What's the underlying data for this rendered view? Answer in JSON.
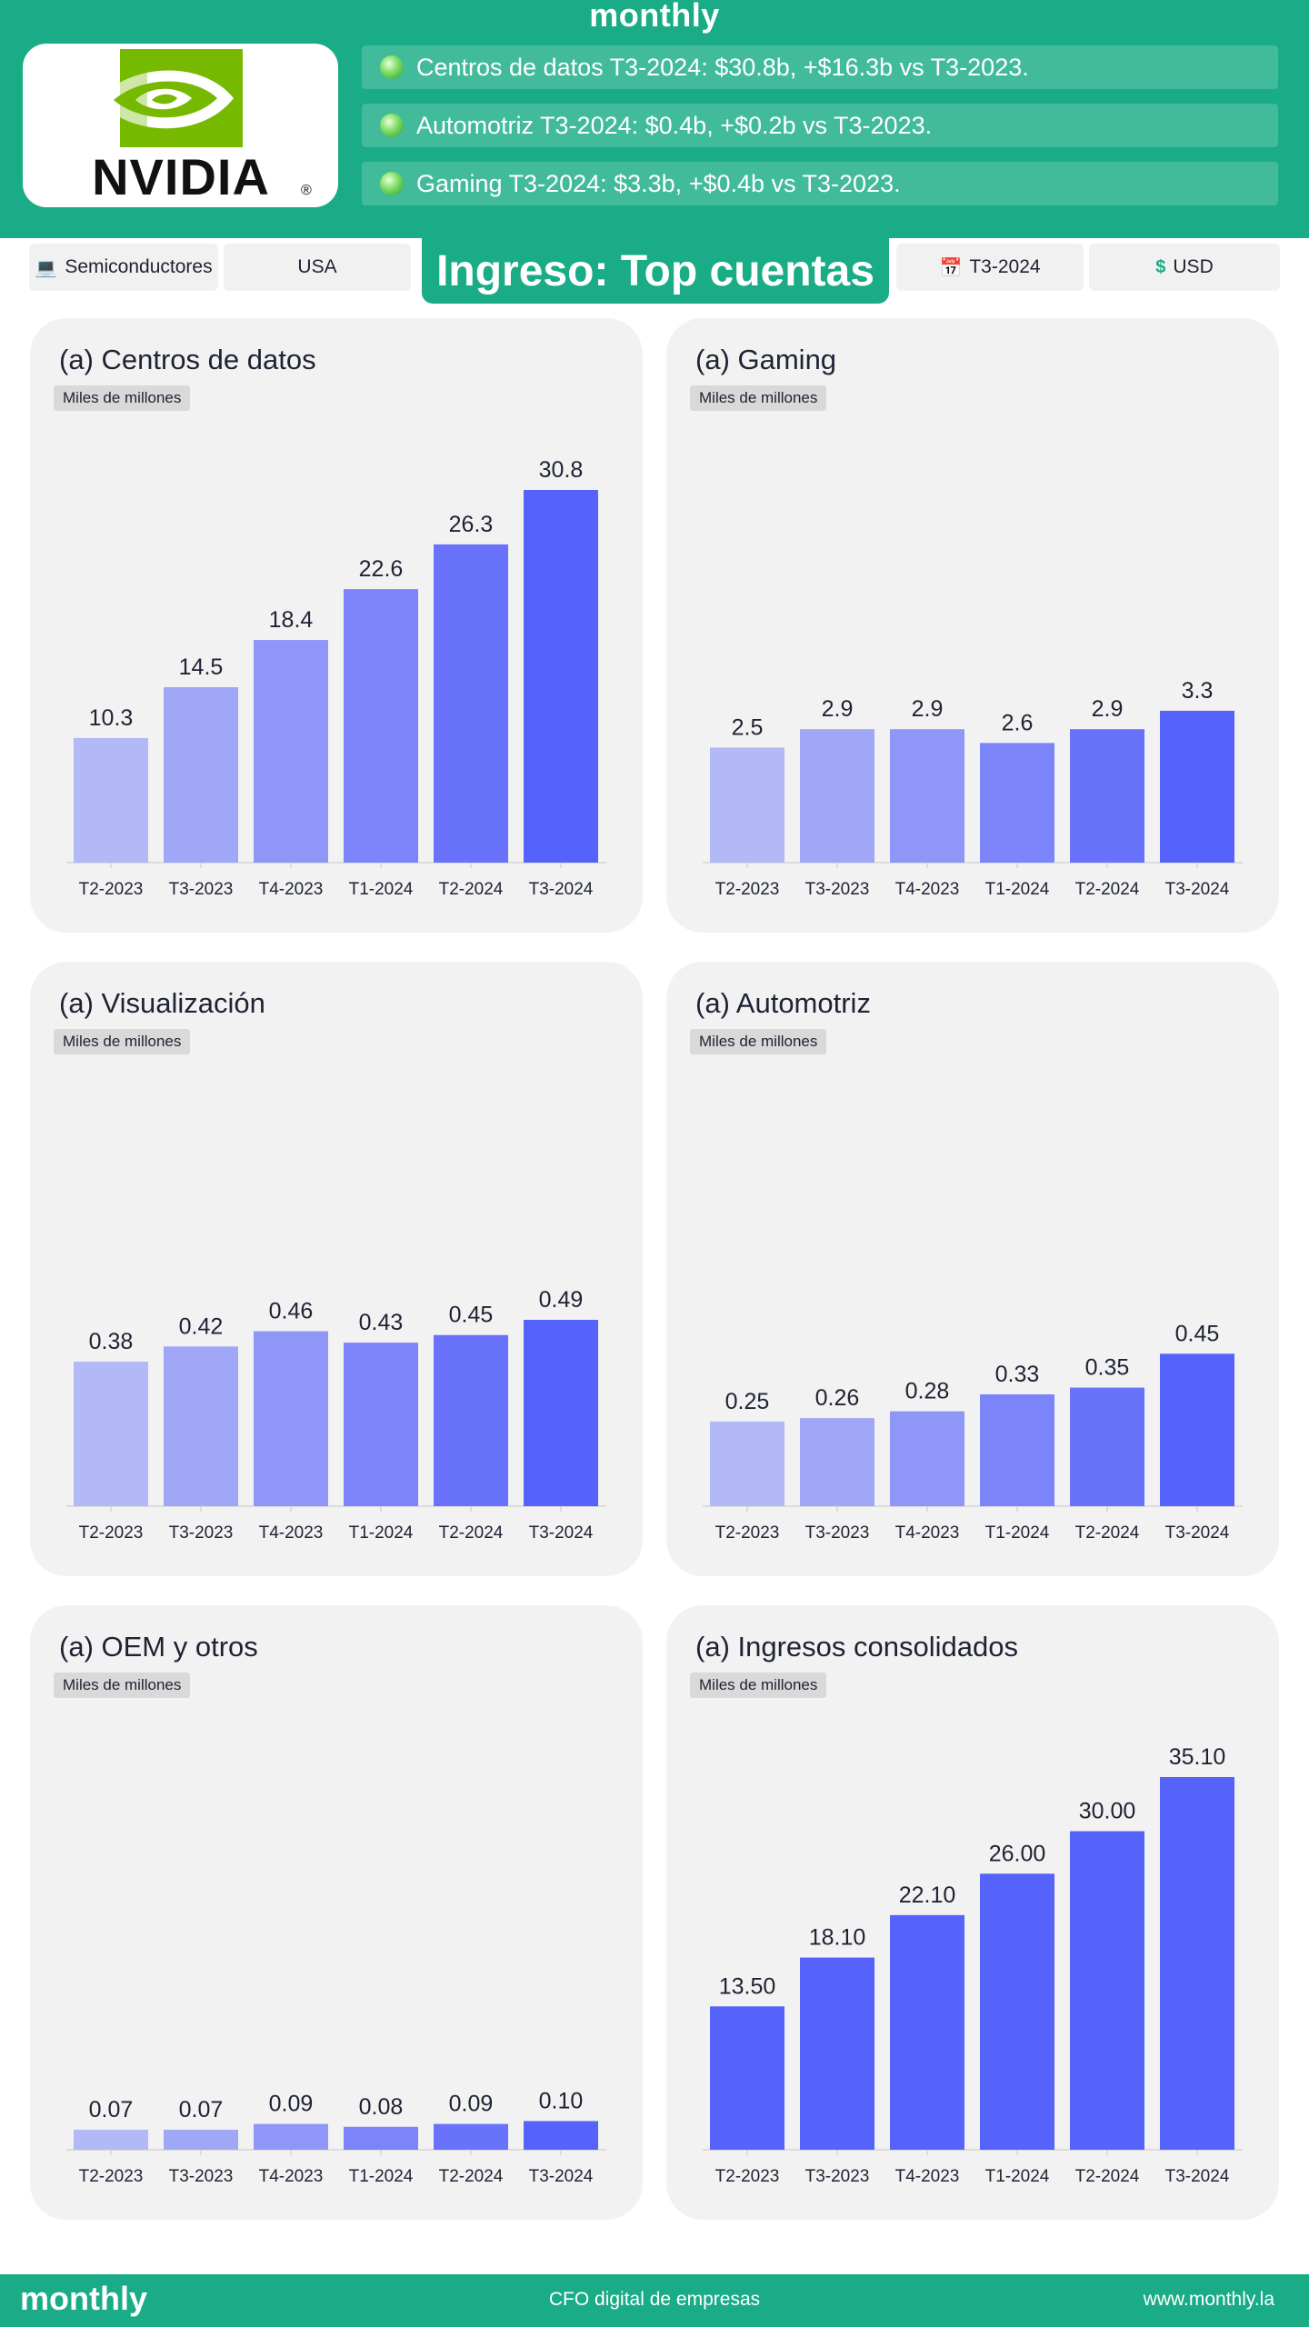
{
  "brand": "monthly",
  "company_logo": "NVIDIA",
  "highlights": [
    "Centros de datos T3-2024: $30.8b, +$16.3b vs T3-2023.",
    "Automotriz T3-2024: $0.4b, +$0.2b vs T3-2023.",
    "Gaming T3-2024: $3.3b, +$0.4b vs T3-2023."
  ],
  "filters": {
    "sector": "Semiconductores",
    "country": "USA",
    "period": "T3-2024",
    "currency": "USD"
  },
  "page_title": "Ingreso: Top cuentas",
  "icons": {
    "sector": "computer-icon",
    "period": "calendar-icon",
    "currency": "dollar-icon",
    "bullet": "green-orb-icon"
  },
  "colors": {
    "brand_green": "#19ac86",
    "bar_gradient": [
      "#b3b8f7",
      "#a0a7f7",
      "#8e96f8",
      "#7b84f9",
      "#6872fa",
      "#5563fb"
    ],
    "bar_solid": "#5563fb"
  },
  "chart_data": [
    {
      "type": "bar",
      "title": "(a) Centros de datos",
      "unit": "Miles de millones",
      "categories": [
        "T2-2023",
        "T3-2023",
        "T4-2023",
        "T1-2024",
        "T2-2024",
        "T3-2024"
      ],
      "values": [
        10.3,
        14.5,
        18.4,
        22.6,
        26.3,
        30.8
      ],
      "labels": [
        "10.3",
        "14.5",
        "18.4",
        "22.6",
        "26.3",
        "30.8"
      ],
      "ylim": [
        0,
        30.8
      ],
      "color_mode": "gradient"
    },
    {
      "type": "bar",
      "title": "(a) Gaming",
      "unit": "Miles de millones",
      "categories": [
        "T2-2023",
        "T3-2023",
        "T4-2023",
        "T1-2024",
        "T2-2024",
        "T3-2024"
      ],
      "values": [
        2.5,
        2.9,
        2.9,
        2.6,
        2.9,
        3.3
      ],
      "labels": [
        "2.5",
        "2.9",
        "2.9",
        "2.6",
        "2.9",
        "3.3"
      ],
      "ylim": [
        0,
        8.1
      ],
      "color_mode": "gradient"
    },
    {
      "type": "bar",
      "title": "(a) Visualización",
      "unit": "Miles de millones",
      "categories": [
        "T2-2023",
        "T3-2023",
        "T4-2023",
        "T1-2024",
        "T2-2024",
        "T3-2024"
      ],
      "values": [
        0.38,
        0.42,
        0.46,
        0.43,
        0.45,
        0.49
      ],
      "labels": [
        "0.38",
        "0.42",
        "0.46",
        "0.43",
        "0.45",
        "0.49"
      ],
      "ylim": [
        0,
        0.98
      ],
      "color_mode": "gradient"
    },
    {
      "type": "bar",
      "title": "(a) Automotriz",
      "unit": "Miles de millones",
      "categories": [
        "T2-2023",
        "T3-2023",
        "T4-2023",
        "T1-2024",
        "T2-2024",
        "T3-2024"
      ],
      "values": [
        0.25,
        0.26,
        0.28,
        0.33,
        0.35,
        0.45
      ],
      "labels": [
        "0.25",
        "0.26",
        "0.28",
        "0.33",
        "0.35",
        "0.45"
      ],
      "ylim": [
        0,
        1.1
      ],
      "color_mode": "gradient"
    },
    {
      "type": "bar",
      "title": "(a) OEM y otros",
      "unit": "Miles de millones",
      "categories": [
        "T2-2023",
        "T3-2023",
        "T4-2023",
        "T1-2024",
        "T2-2024",
        "T3-2024"
      ],
      "values": [
        0.07,
        0.07,
        0.09,
        0.08,
        0.09,
        0.1
      ],
      "labels": [
        "0.07",
        "0.07",
        "0.09",
        "0.08",
        "0.09",
        "0.10"
      ],
      "ylim": [
        0,
        1.3
      ],
      "color_mode": "gradient"
    },
    {
      "type": "bar",
      "title": "(a) Ingresos consolidados",
      "unit": "Miles de millones",
      "categories": [
        "T2-2023",
        "T3-2023",
        "T4-2023",
        "T1-2024",
        "T2-2024",
        "T3-2024"
      ],
      "values": [
        13.5,
        18.1,
        22.1,
        26.0,
        30.0,
        35.1
      ],
      "labels": [
        "13.50",
        "18.10",
        "22.10",
        "26.00",
        "30.00",
        "35.10"
      ],
      "ylim": [
        0,
        35.1
      ],
      "color_mode": "solid"
    }
  ],
  "footer": {
    "brand": "monthly",
    "tagline": "CFO digital de empresas",
    "website": "www.monthly.la"
  }
}
